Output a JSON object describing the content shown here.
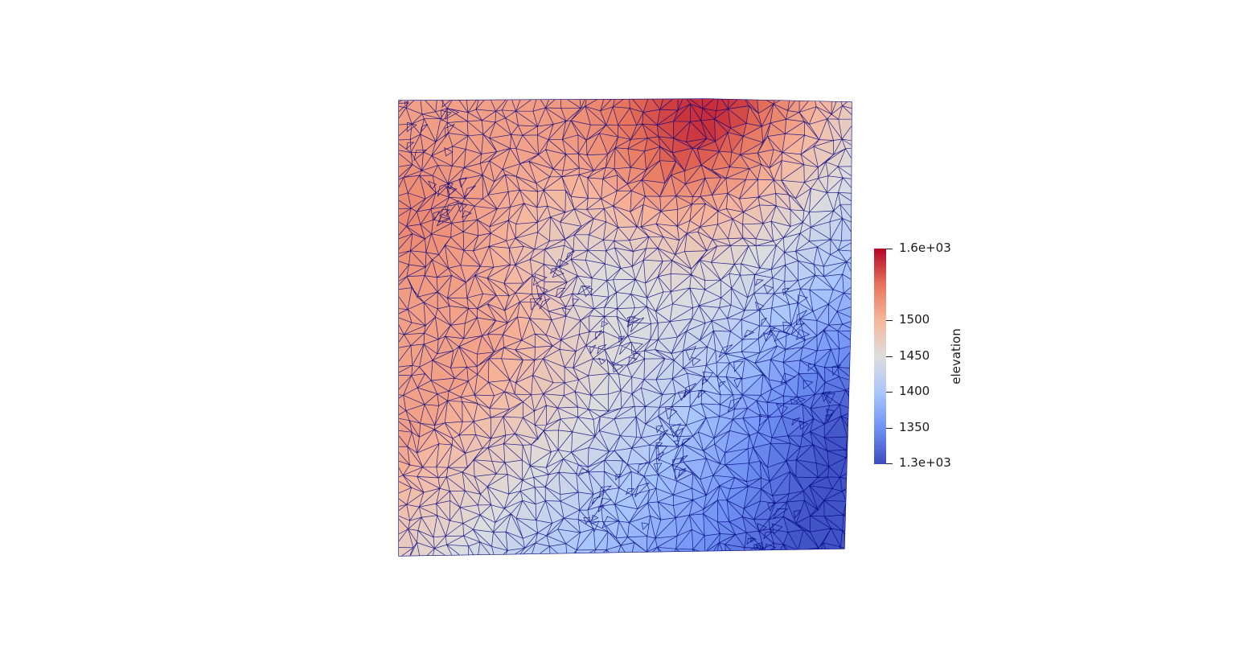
{
  "scalar_bar": {
    "title": "elevation",
    "range": [
      1300,
      1600
    ],
    "labels": [
      {
        "text": "1.6e+03",
        "value": 1600
      },
      {
        "text": "1500",
        "value": 1500
      },
      {
        "text": "1450",
        "value": 1450
      },
      {
        "text": "1400",
        "value": 1400
      },
      {
        "text": "1350",
        "value": 1350
      },
      {
        "text": "1.3e+03",
        "value": 1300
      }
    ],
    "colormap": "Cool to Warm",
    "colors": [
      "#3b4cc0",
      "#6f92f3",
      "#aac7fd",
      "#dddddd",
      "#f6b69b",
      "#e7745b",
      "#b40426"
    ]
  },
  "mesh": {
    "edge_color": "#000080",
    "field": "elevation"
  }
}
